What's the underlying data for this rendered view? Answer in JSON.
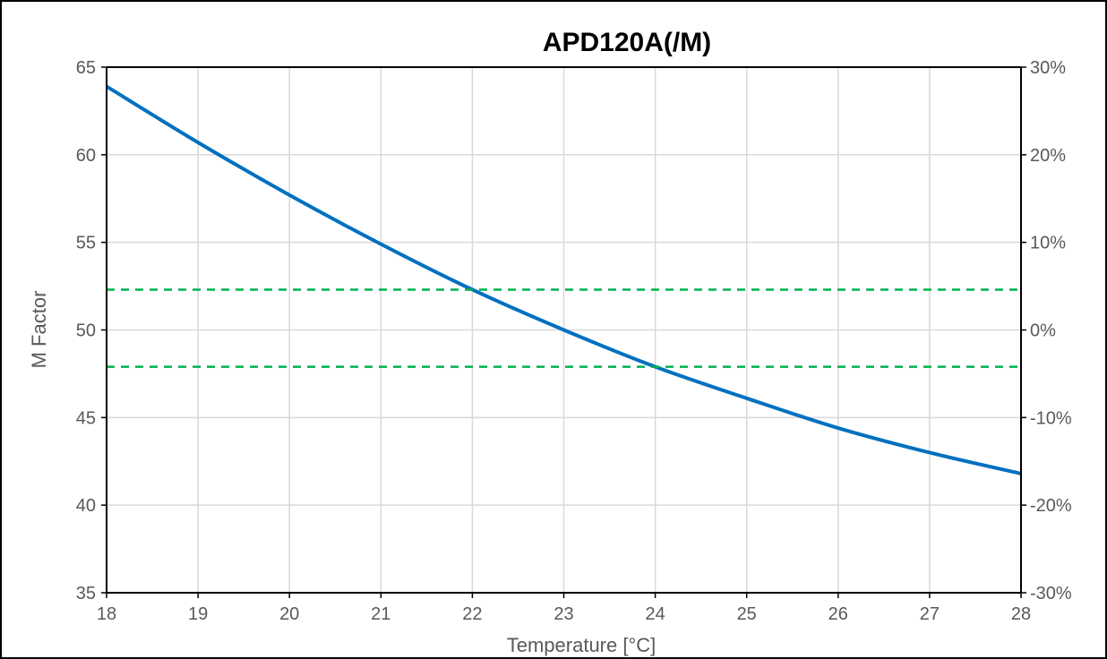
{
  "chart_data": {
    "type": "line",
    "title": "APD120A(/M)",
    "xlabel": "Temperature [°C]",
    "ylabel": "M Factor",
    "y2label": "",
    "xlim": [
      18,
      28
    ],
    "ylim": [
      35,
      65
    ],
    "y2lim": [
      -30,
      30
    ],
    "xticks": [
      18,
      19,
      20,
      21,
      22,
      23,
      24,
      25,
      26,
      27,
      28
    ],
    "yticks": [
      35,
      40,
      45,
      50,
      55,
      60,
      65
    ],
    "y2ticks": [
      "-30%",
      "-20%",
      "-10%",
      "0%",
      "10%",
      "20%",
      "30%"
    ],
    "grid": true,
    "legend": "none",
    "series": [
      {
        "color": "#0070c0",
        "style": "solid",
        "x": [
          18,
          19,
          20,
          21,
          22,
          23,
          24,
          25,
          26,
          27,
          28
        ],
        "y": [
          63.9,
          60.7,
          57.7,
          54.9,
          52.3,
          50.0,
          47.9,
          46.1,
          44.4,
          43.0,
          41.8
        ]
      },
      {
        "color": "#00b050",
        "style": "dashed",
        "x": [
          18,
          28
        ],
        "y": [
          52.3,
          52.3
        ]
      },
      {
        "color": "#00b050",
        "style": "dashed",
        "x": [
          18,
          28
        ],
        "y": [
          47.9,
          47.9
        ]
      }
    ]
  }
}
